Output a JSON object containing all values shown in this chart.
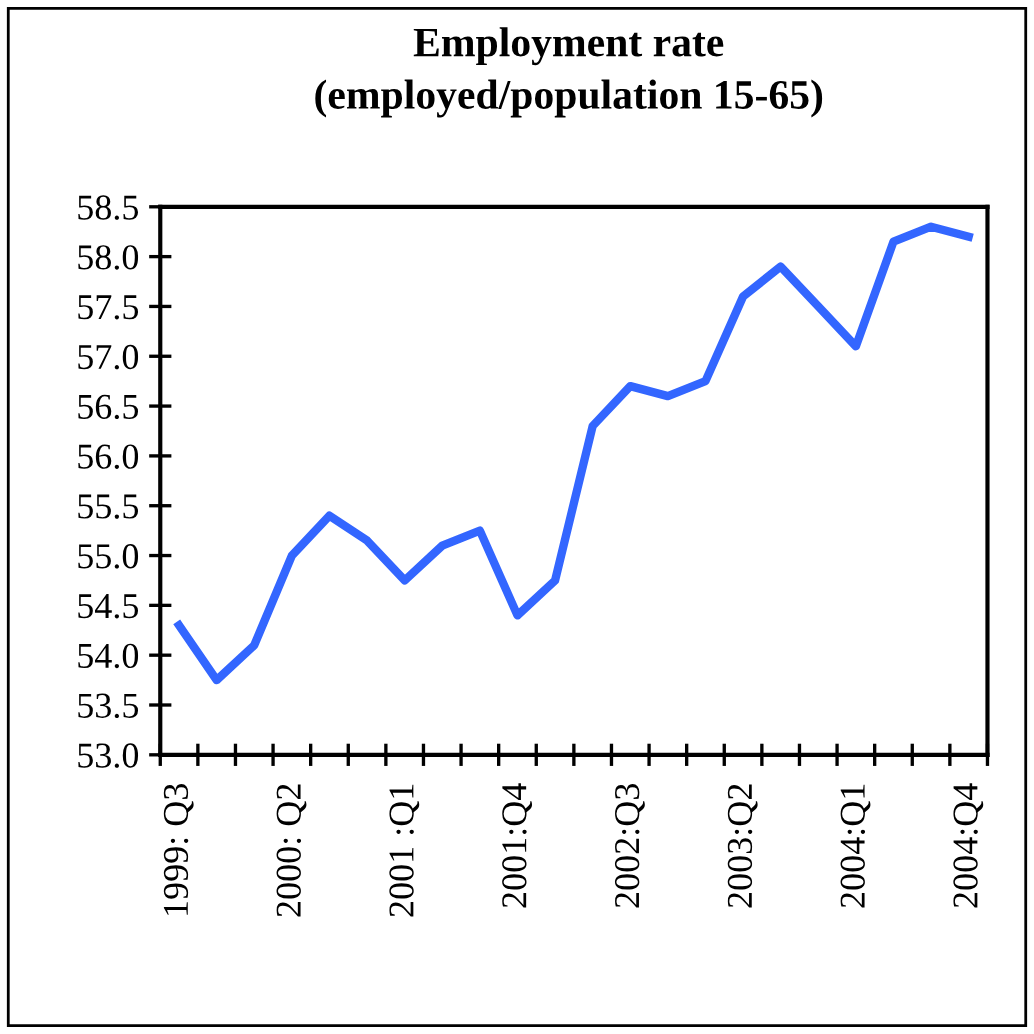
{
  "chart_data": {
    "type": "line",
    "title": "Employment rate\n(employed/population 15-65)",
    "categories": [
      "1999: Q3",
      null,
      null,
      "2000: Q2",
      null,
      null,
      "2001 :Q1",
      null,
      null,
      "2001:Q4",
      null,
      null,
      "2002:Q3",
      null,
      null,
      "2003:Q2",
      null,
      null,
      "2004:Q1",
      null,
      null,
      "2004:Q4"
    ],
    "series": [
      {
        "color": "#3366ff",
        "values": [
          54.3,
          53.75,
          54.1,
          55.0,
          55.4,
          55.15,
          54.75,
          55.1,
          55.25,
          54.4,
          54.75,
          56.3,
          56.7,
          56.6,
          56.75,
          57.6,
          57.9,
          57.5,
          57.1,
          58.15,
          58.3,
          58.2
        ]
      }
    ],
    "ylim": [
      53,
      58.5
    ],
    "yticks": [
      {
        "value": 53,
        "label": "53.0"
      },
      {
        "value": 53.5,
        "label": "53.5"
      },
      {
        "value": 54,
        "label": "54.0"
      },
      {
        "value": 54.5,
        "label": "54.5"
      },
      {
        "value": 55,
        "label": "55.0"
      },
      {
        "value": 55.5,
        "label": "55.5"
      },
      {
        "value": 56,
        "label": "56.0"
      },
      {
        "value": 56.5,
        "label": "56.5"
      },
      {
        "value": 57,
        "label": "57.0"
      },
      {
        "value": 57.5,
        "label": "57.5"
      },
      {
        "value": 58,
        "label": "58.0"
      },
      {
        "value": 58.5,
        "label": "58.5"
      }
    ],
    "grid": false,
    "legend": false,
    "marker": "none",
    "line_style": "solid"
  }
}
